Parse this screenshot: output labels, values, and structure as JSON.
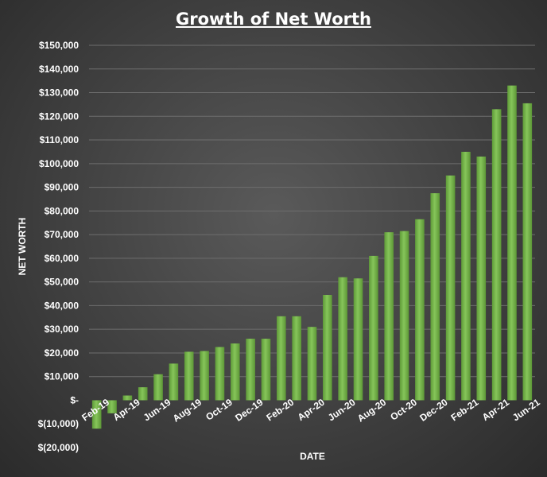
{
  "chart_data": {
    "type": "bar",
    "title": "Growth of Net Worth",
    "xlabel": "DATE",
    "ylabel": "NET WORTH",
    "ylim": [
      -20000,
      150000
    ],
    "y_ticks": [
      -20000,
      -10000,
      0,
      10000,
      20000,
      30000,
      40000,
      50000,
      60000,
      70000,
      80000,
      90000,
      100000,
      110000,
      120000,
      130000,
      140000,
      150000
    ],
    "y_tick_labels": [
      "$(20,000)",
      "$(10,000)",
      "$-",
      "$10,000",
      "$20,000",
      "$30,000",
      "$40,000",
      "$50,000",
      "$60,000",
      "$70,000",
      "$80,000",
      "$90,000",
      "$100,000",
      "$110,000",
      "$120,000",
      "$130,000",
      "$140,000",
      "$150,000"
    ],
    "categories": [
      "Feb-19",
      "Mar-19",
      "Apr-19",
      "May-19",
      "Jun-19",
      "Jul-19",
      "Aug-19",
      "Sep-19",
      "Oct-19",
      "Nov-19",
      "Dec-19",
      "Jan-20",
      "Feb-20",
      "Mar-20",
      "Apr-20",
      "May-20",
      "Jun-20",
      "Jul-20",
      "Aug-20",
      "Sep-20",
      "Oct-20",
      "Nov-20",
      "Dec-20",
      "Jan-21",
      "Feb-21",
      "Mar-21",
      "Apr-21",
      "May-21",
      "Jun-21"
    ],
    "x_tick_labels": [
      "Feb-19",
      "",
      "Apr-19",
      "",
      "Jun-19",
      "",
      "Aug-19",
      "",
      "Oct-19",
      "",
      "Dec-19",
      "",
      "Feb-20",
      "",
      "Apr-20",
      "",
      "Jun-20",
      "",
      "Aug-20",
      "",
      "Oct-20",
      "",
      "Dec-20",
      "",
      "Feb-21",
      "",
      "Apr-21",
      "",
      "Jun-21"
    ],
    "values": [
      -12000,
      -5500,
      2000,
      5500,
      11000,
      15500,
      20500,
      20800,
      22500,
      24000,
      26000,
      26000,
      35500,
      35500,
      31000,
      44500,
      52000,
      51500,
      61000,
      71000,
      71500,
      76500,
      87500,
      95000,
      105000,
      103000,
      123000,
      133000,
      125500
    ],
    "grid": true,
    "bar_color": "#72b146"
  }
}
